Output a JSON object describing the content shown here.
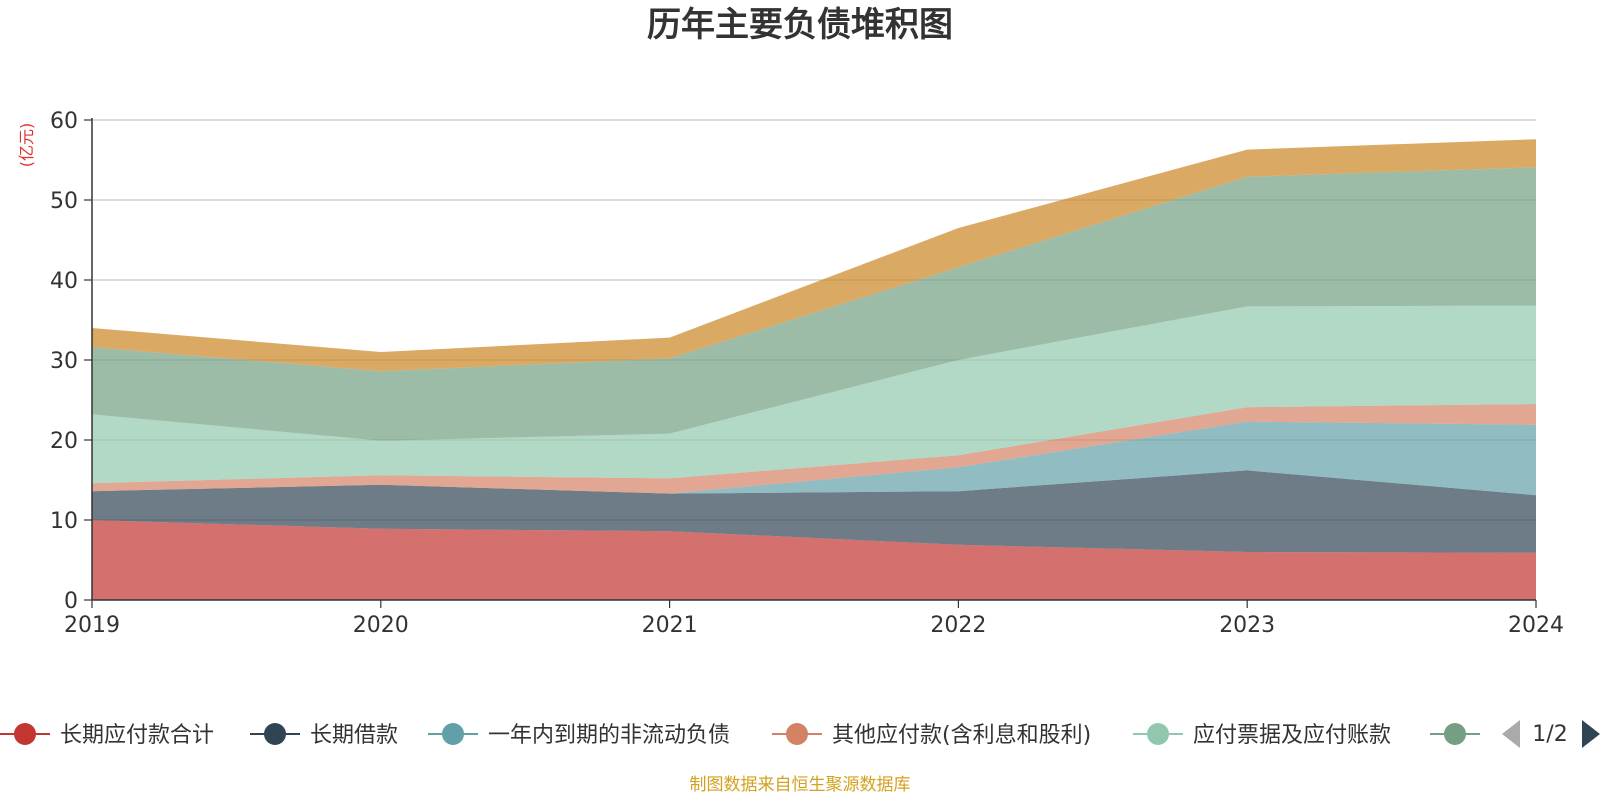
{
  "chart_data": {
    "type": "area",
    "title": "历年主要负债堆积图",
    "yunit": "(亿元)",
    "ylim": [
      0,
      60
    ],
    "yticks": [
      0,
      10,
      20,
      30,
      40,
      50,
      60
    ],
    "grid": true,
    "x": [
      "2019",
      "2020",
      "2021",
      "2022",
      "2023",
      "2024"
    ],
    "series": [
      {
        "name": "长期应付款合计",
        "color": "#c23531",
        "values": [
          10.0,
          8.9,
          8.6,
          6.9,
          6.0,
          5.9
        ]
      },
      {
        "name": "长期借款",
        "color": "#2f4554",
        "values": [
          3.6,
          5.5,
          4.7,
          6.7,
          10.2,
          7.2
        ]
      },
      {
        "name": "一年内到期的非流动负债",
        "color": "#61a0a8",
        "values": [
          0.0,
          0.0,
          0.0,
          3.0,
          6.1,
          8.8
        ]
      },
      {
        "name": "其他应付款(含利息和股利)",
        "color": "#d48265",
        "values": [
          1.0,
          1.2,
          1.9,
          1.5,
          1.8,
          2.6
        ]
      },
      {
        "name": "应付票据及应付账款",
        "color": "#91c7ae",
        "values": [
          8.6,
          4.3,
          5.6,
          11.9,
          12.6,
          12.3
        ]
      },
      {
        "name": "",
        "color": "#749f83",
        "values": [
          8.4,
          8.7,
          9.4,
          11.6,
          16.2,
          17.3
        ]
      },
      {
        "name": "",
        "color": "#ca8622",
        "values": [
          2.4,
          2.4,
          2.6,
          4.9,
          3.4,
          3.5
        ]
      }
    ],
    "legend_position": "bottom",
    "legend_page": "1/2"
  },
  "footer": {
    "source": "制图数据来自恒生聚源数据库"
  }
}
